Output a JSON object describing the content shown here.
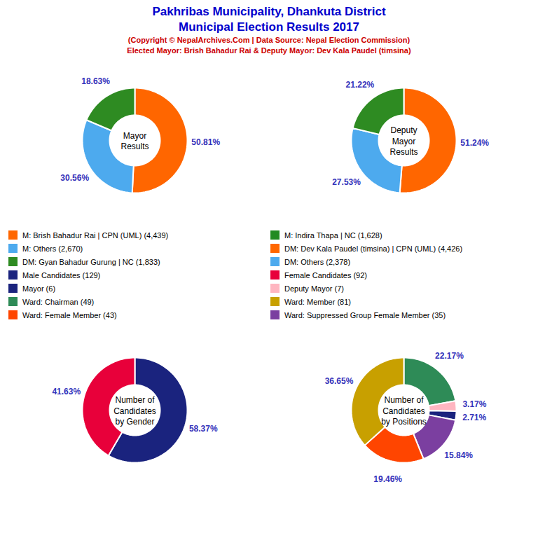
{
  "title": [
    "Pakhribas Municipality, Dhankuta District",
    "Municipal Election Results 2017"
  ],
  "subtitle": [
    "(Copyright © NepalArchives.Com | Data Source: Nepal Election Commission)",
    "Elected Mayor: Brish Bahadur Rai & Deputy Mayor: Dev Kala Paudel (timsina)"
  ],
  "chart_data": [
    {
      "type": "pie",
      "title": "Mayor\nResults",
      "values": [
        50.81,
        30.56,
        18.63
      ],
      "value_labels": [
        "50.81%",
        "30.56%",
        "18.63%"
      ],
      "colors": [
        "#FF6600",
        "#4DAAEE",
        "#2E8B22"
      ],
      "data_labels": true
    },
    {
      "type": "pie",
      "title": "Deputy\nMayor\nResults",
      "values": [
        51.24,
        27.53,
        21.22
      ],
      "value_labels": [
        "51.24%",
        "27.53%",
        "21.22%"
      ],
      "colors": [
        "#FF6600",
        "#4DAAEE",
        "#2E8B22"
      ],
      "data_labels": true
    },
    {
      "type": "pie",
      "title": "Number of\nCandidates\nby Gender",
      "values": [
        58.37,
        41.63
      ],
      "value_labels": [
        "58.37%",
        "41.63%"
      ],
      "colors": [
        "#1A237E",
        "#E8003A"
      ],
      "data_labels": true
    },
    {
      "type": "pie",
      "title": "Number of\nCandidates\nby Positions",
      "values": [
        22.17,
        3.17,
        2.71,
        15.84,
        19.46,
        36.65
      ],
      "value_labels": [
        "22.17%",
        "3.17%",
        "2.71%",
        "15.84%",
        "19.46%",
        "36.65%"
      ],
      "colors": [
        "#2E8B57",
        "#FFB6C1",
        "#1A237E",
        "#7B3FA0",
        "#FF4500",
        "#C8A000"
      ],
      "data_labels": true
    }
  ],
  "legend_columns": [
    [
      {
        "label": "M: Brish Bahadur Rai | CPN (UML) (4,439)",
        "color": "#FF6600"
      },
      {
        "label": "M: Others (2,670)",
        "color": "#4DAAEE"
      },
      {
        "label": "DM: Gyan Bahadur Gurung | NC (1,833)",
        "color": "#2E8B22"
      },
      {
        "label": "Male Candidates (129)",
        "color": "#1A237E"
      },
      {
        "label": "Mayor (6)",
        "color": "#1A237E"
      },
      {
        "label": "Ward: Chairman (49)",
        "color": "#2E8B57"
      },
      {
        "label": "Ward: Female Member (43)",
        "color": "#FF4500"
      }
    ],
    [
      {
        "label": "M: Indira Thapa | NC (1,628)",
        "color": "#228B22"
      },
      {
        "label": "DM: Dev Kala Paudel (timsina) | CPN (UML) (4,426)",
        "color": "#FF6600"
      },
      {
        "label": "DM: Others (2,378)",
        "color": "#4DAAEE"
      },
      {
        "label": "Female Candidates (92)",
        "color": "#E8003A"
      },
      {
        "label": "Deputy Mayor (7)",
        "color": "#FFB6C1"
      },
      {
        "label": "Ward: Member (81)",
        "color": "#C8A000"
      },
      {
        "label": "Ward: Suppressed Group Female Member (35)",
        "color": "#7B3FA0"
      }
    ]
  ]
}
